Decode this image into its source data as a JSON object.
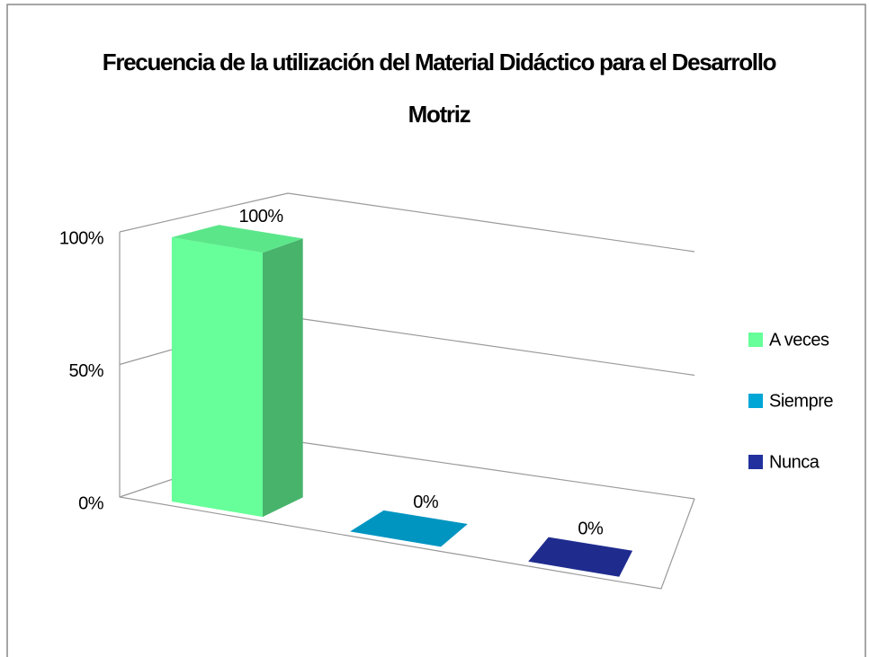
{
  "chart_data": {
    "type": "bar3d",
    "title": "Frecuencia de la utilización del Material Didáctico para el Desarrollo Motriz",
    "series": [
      {
        "name": "A veces",
        "color": "#66ff99",
        "values": [
          100
        ],
        "value_labels": [
          "100%"
        ]
      },
      {
        "name": "Siempre",
        "color": "#00a6d6",
        "values": [
          0
        ],
        "value_labels": [
          "0%"
        ]
      },
      {
        "name": "Nunca",
        "color": "#22319e",
        "values": [
          0
        ],
        "value_labels": [
          "0%"
        ]
      }
    ],
    "ylim": [
      0,
      100
    ],
    "yticks": [
      {
        "value": 0,
        "label": "0%"
      },
      {
        "value": 50,
        "label": "50%"
      },
      {
        "value": 100,
        "label": "100%"
      }
    ],
    "grid": true,
    "legend": "right"
  }
}
